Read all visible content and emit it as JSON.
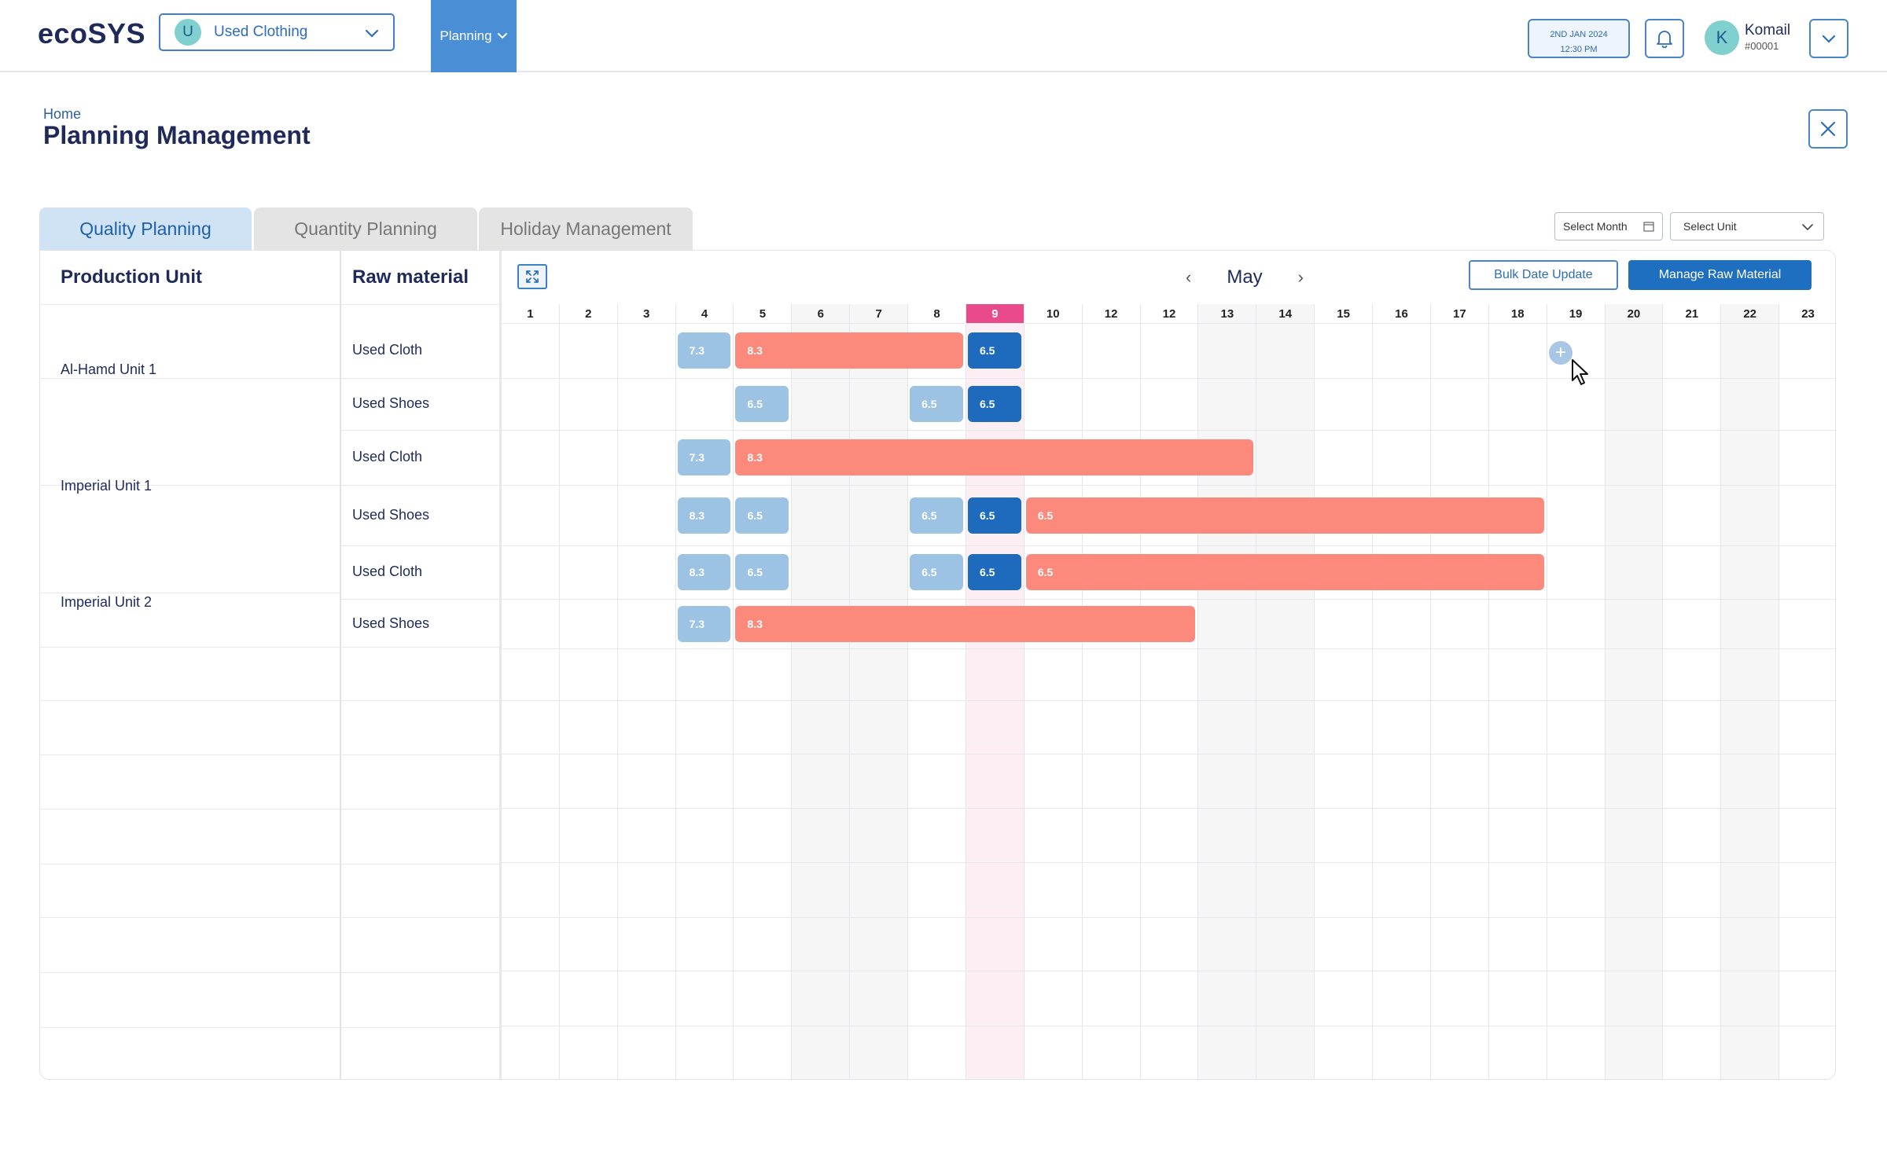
{
  "header": {
    "logo": "ecoSYS",
    "company": {
      "initial": "U",
      "name": "Used Clothing"
    },
    "nav_planning": "Planning",
    "date_line1": "2ND JAN 2024",
    "date_line2": "12:30 PM",
    "user": {
      "initial": "K",
      "name": "Komail",
      "id": "#00001"
    }
  },
  "page": {
    "breadcrumb": "Home",
    "title": "Planning Management"
  },
  "tabs": [
    {
      "label": "Quality Planning",
      "active": true
    },
    {
      "label": "Quantity Planning",
      "active": false
    },
    {
      "label": "Holiday Management",
      "active": false
    }
  ],
  "filters": {
    "month_placeholder": "Select Month",
    "unit_placeholder": "Select Unit"
  },
  "table": {
    "col_unit": "Production Unit",
    "col_material": "Raw material",
    "month": "May",
    "bulk_button": "Bulk Date Update",
    "manage_button": "Manage Raw Material",
    "days": [
      "1",
      "2",
      "3",
      "4",
      "5",
      "6",
      "7",
      "8",
      "9",
      "10",
      "12",
      "12",
      "13",
      "14",
      "15",
      "16",
      "17",
      "18",
      "19",
      "20",
      "21",
      "22",
      "23"
    ],
    "today_day": "9",
    "weekend_days": [
      "6",
      "7",
      "13",
      "14",
      "20",
      "22"
    ],
    "units": [
      {
        "name": "Al-Hamd Unit 1",
        "materials": [
          "Used Cloth",
          "Used Shoes"
        ]
      },
      {
        "name": "Imperial Unit 1",
        "materials": [
          "Used Cloth",
          "Used Shoes"
        ]
      },
      {
        "name": "Imperial Unit 2",
        "materials": [
          "Used Cloth",
          "Used Shoes"
        ]
      }
    ],
    "bars": [
      {
        "unit": "Al-Hamd Unit 1",
        "material": "Used Cloth",
        "label": "7.3",
        "style": "light",
        "start_day": 4,
        "span_days": 1
      },
      {
        "unit": "Al-Hamd Unit 1",
        "material": "Used Cloth",
        "label": "8.3",
        "style": "red",
        "start_day": 5,
        "span_days": 4
      },
      {
        "unit": "Al-Hamd Unit 1",
        "material": "Used Cloth",
        "label": "6.5",
        "style": "dark",
        "start_day": 9,
        "span_days": 1
      },
      {
        "unit": "Al-Hamd Unit 1",
        "material": "Used Shoes",
        "label": "6.5",
        "style": "light",
        "start_day": 5,
        "span_days": 1
      },
      {
        "unit": "Al-Hamd Unit 1",
        "material": "Used Shoes",
        "label": "6.5",
        "style": "light",
        "start_day": 8,
        "span_days": 1
      },
      {
        "unit": "Al-Hamd Unit 1",
        "material": "Used Shoes",
        "label": "6.5",
        "style": "dark",
        "start_day": 9,
        "span_days": 1
      },
      {
        "unit": "Imperial Unit 1",
        "material": "Used Cloth",
        "label": "7.3",
        "style": "light",
        "start_day": 4,
        "span_days": 1
      },
      {
        "unit": "Imperial Unit 1",
        "material": "Used Cloth",
        "label": "8.3",
        "style": "red",
        "start_day": 5,
        "span_days": 9
      },
      {
        "unit": "Imperial Unit 1",
        "material": "Used Shoes",
        "label": "8.3",
        "style": "light",
        "start_day": 4,
        "span_days": 1
      },
      {
        "unit": "Imperial Unit 1",
        "material": "Used Shoes",
        "label": "6.5",
        "style": "light",
        "start_day": 5,
        "span_days": 1
      },
      {
        "unit": "Imperial Unit 1",
        "material": "Used Shoes",
        "label": "6.5",
        "style": "light",
        "start_day": 8,
        "span_days": 1
      },
      {
        "unit": "Imperial Unit 1",
        "material": "Used Shoes",
        "label": "6.5",
        "style": "dark",
        "start_day": 9,
        "span_days": 1
      },
      {
        "unit": "Imperial Unit 1",
        "material": "Used Shoes",
        "label": "6.5",
        "style": "red",
        "start_day": 10,
        "span_days": 9
      },
      {
        "unit": "Imperial Unit 2",
        "material": "Used Cloth",
        "label": "8.3",
        "style": "light",
        "start_day": 4,
        "span_days": 1
      },
      {
        "unit": "Imperial Unit 2",
        "material": "Used Cloth",
        "label": "6.5",
        "style": "light",
        "start_day": 5,
        "span_days": 1
      },
      {
        "unit": "Imperial Unit 2",
        "material": "Used Cloth",
        "label": "6.5",
        "style": "light",
        "start_day": 8,
        "span_days": 1
      },
      {
        "unit": "Imperial Unit 2",
        "material": "Used Cloth",
        "label": "6.5",
        "style": "dark",
        "start_day": 9,
        "span_days": 1
      },
      {
        "unit": "Imperial Unit 2",
        "material": "Used Cloth",
        "label": "6.5",
        "style": "red",
        "start_day": 10,
        "span_days": 9
      },
      {
        "unit": "Imperial Unit 2",
        "material": "Used Shoes",
        "label": "7.3",
        "style": "light",
        "start_day": 4,
        "span_days": 1
      },
      {
        "unit": "Imperial Unit 2",
        "material": "Used Shoes",
        "label": "8.3",
        "style": "red",
        "start_day": 5,
        "span_days": 8
      }
    ]
  }
}
